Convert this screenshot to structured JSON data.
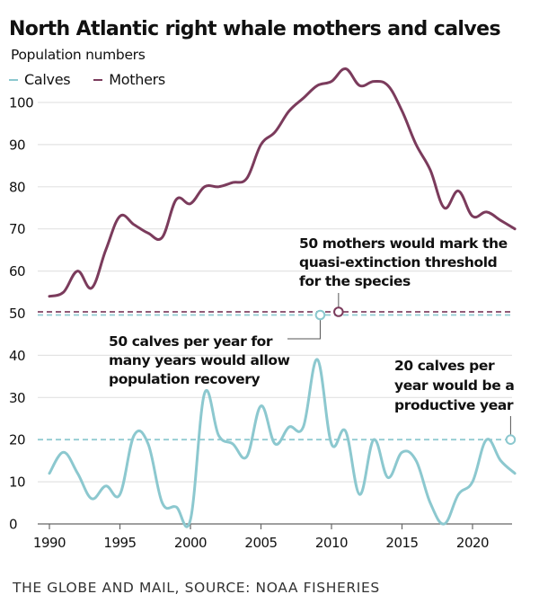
{
  "header": {
    "title": "North Atlantic right whale mothers and calves",
    "subtitle": "Population numbers"
  },
  "legend": [
    {
      "label": "Calves",
      "color": "#8cc8cf"
    },
    {
      "label": "Mothers",
      "color": "#7b3b5c"
    }
  ],
  "footer": "THE GLOBE AND MAIL, SOURCE: NOAA FISHERIES",
  "chart_data": {
    "type": "line",
    "title": "North Atlantic right whale mothers and calves",
    "subtitle": "Population numbers",
    "xlabel": "",
    "ylabel": "",
    "xlim": [
      1990,
      2023
    ],
    "ylim": [
      0,
      100
    ],
    "xticks": [
      1990,
      1995,
      2000,
      2005,
      2010,
      2015,
      2020
    ],
    "yticks": [
      0,
      10,
      20,
      30,
      40,
      50,
      60,
      70,
      80,
      90,
      100
    ],
    "grid": true,
    "legend_position": "top-left",
    "x": [
      1990,
      1991,
      1992,
      1993,
      1994,
      1995,
      1996,
      1997,
      1998,
      1999,
      2000,
      2001,
      2002,
      2003,
      2004,
      2005,
      2006,
      2007,
      2008,
      2009,
      2010,
      2011,
      2012,
      2013,
      2014,
      2015,
      2016,
      2017,
      2018,
      2019,
      2020,
      2021,
      2022,
      2023
    ],
    "series": [
      {
        "name": "Calves",
        "color": "#8cc8cf",
        "values": [
          12,
          17,
          12,
          6,
          9,
          7,
          21,
          19,
          5,
          4,
          1,
          31,
          21,
          19,
          16,
          28,
          19,
          23,
          23,
          39,
          19,
          22,
          7,
          20,
          11,
          17,
          15,
          5,
          0,
          7,
          10,
          20,
          15,
          12
        ]
      },
      {
        "name": "Mothers",
        "color": "#7b3b5c",
        "values": [
          54,
          55,
          60,
          56,
          65,
          73,
          71,
          69,
          68,
          77,
          76,
          80,
          80,
          81,
          82,
          90,
          93,
          98,
          101,
          104,
          105,
          108,
          104,
          105,
          104,
          98,
          90,
          84,
          75,
          79,
          73,
          74,
          72,
          70
        ]
      }
    ],
    "reference_lines": [
      {
        "name": "mothers-threshold",
        "y": 50,
        "color": "#7b3b5c",
        "style": "dashed"
      },
      {
        "name": "calves-recovery",
        "y": 50,
        "color": "#8cc8cf",
        "style": "dashed"
      },
      {
        "name": "calves-productive",
        "y": 20,
        "color": "#8cc8cf",
        "style": "dashed"
      }
    ],
    "annotations": [
      {
        "name": "mothers-threshold-note",
        "lines": [
          "50 mothers would mark the",
          "quasi-extinction threshold",
          "for the species"
        ],
        "point": {
          "x": 2010.5,
          "y": 50
        },
        "color": "#7b3b5c"
      },
      {
        "name": "calves-recovery-note",
        "lines": [
          "50 calves per year for",
          "many years would allow",
          "population recovery"
        ],
        "point": {
          "x": 2009.2,
          "y": 50
        },
        "color": "#8cc8cf"
      },
      {
        "name": "calves-productive-note",
        "lines": [
          "20 calves per",
          "year would be a",
          "productive year"
        ],
        "point": {
          "x": 2022.7,
          "y": 20
        },
        "color": "#8cc8cf"
      }
    ]
  }
}
